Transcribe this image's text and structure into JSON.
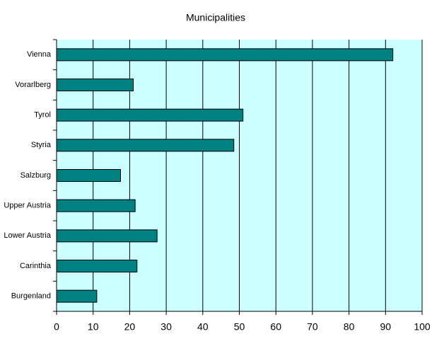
{
  "chart_data": {
    "type": "bar",
    "orientation": "horizontal",
    "title": "Municipalities",
    "categories": [
      "Vienna",
      "Vorarlberg",
      "Tyrol",
      "Styria",
      "Salzburg",
      "Upper Austria",
      "Lower Austria",
      "Carinthia",
      "Burgenland"
    ],
    "values": [
      92,
      21,
      51,
      48.5,
      17.5,
      21.5,
      27.5,
      22,
      11
    ],
    "color": "#008080",
    "plot_background": "#ccffff",
    "xlim": [
      0,
      100
    ],
    "xticks": [
      0,
      10,
      20,
      30,
      40,
      50,
      60,
      70,
      80,
      90,
      100
    ],
    "grid": true
  }
}
